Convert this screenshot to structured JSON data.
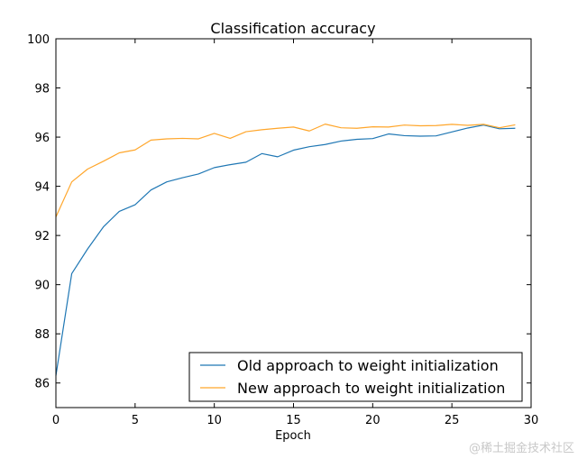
{
  "chart_data": {
    "type": "line",
    "title": "Classification accuracy",
    "xlabel": "Epoch",
    "ylabel": "",
    "xlim": [
      0,
      30
    ],
    "ylim": [
      85,
      100
    ],
    "xticks": [
      0,
      5,
      10,
      15,
      20,
      25,
      30
    ],
    "yticks": [
      86,
      88,
      90,
      92,
      94,
      96,
      98,
      100
    ],
    "legend_position": "lower-right",
    "x": [
      0,
      1,
      2,
      3,
      4,
      5,
      6,
      7,
      8,
      9,
      10,
      11,
      12,
      13,
      14,
      15,
      16,
      17,
      18,
      19,
      20,
      21,
      22,
      23,
      24,
      25,
      26,
      27,
      28,
      29
    ],
    "series": [
      {
        "name": "Old approach to weight initialization",
        "color": "#1f77b4",
        "values": [
          86.3,
          90.45,
          91.45,
          92.35,
          92.98,
          93.25,
          93.85,
          94.18,
          94.35,
          94.5,
          94.76,
          94.88,
          94.98,
          95.33,
          95.2,
          95.47,
          95.61,
          95.7,
          95.84,
          95.91,
          95.94,
          96.13,
          96.06,
          96.04,
          96.05,
          96.21,
          96.37,
          96.49,
          96.34,
          96.36
        ]
      },
      {
        "name": "New approach to weight initialization",
        "color": "#ffa62b",
        "values": [
          92.75,
          94.18,
          94.7,
          95.02,
          95.36,
          95.48,
          95.88,
          95.93,
          95.95,
          95.93,
          96.15,
          95.95,
          96.22,
          96.3,
          96.36,
          96.41,
          96.25,
          96.53,
          96.38,
          96.36,
          96.42,
          96.41,
          96.49,
          96.46,
          96.47,
          96.52,
          96.48,
          96.52,
          96.38,
          96.5
        ]
      }
    ]
  },
  "watermark": "@稀土掘金技术社区"
}
